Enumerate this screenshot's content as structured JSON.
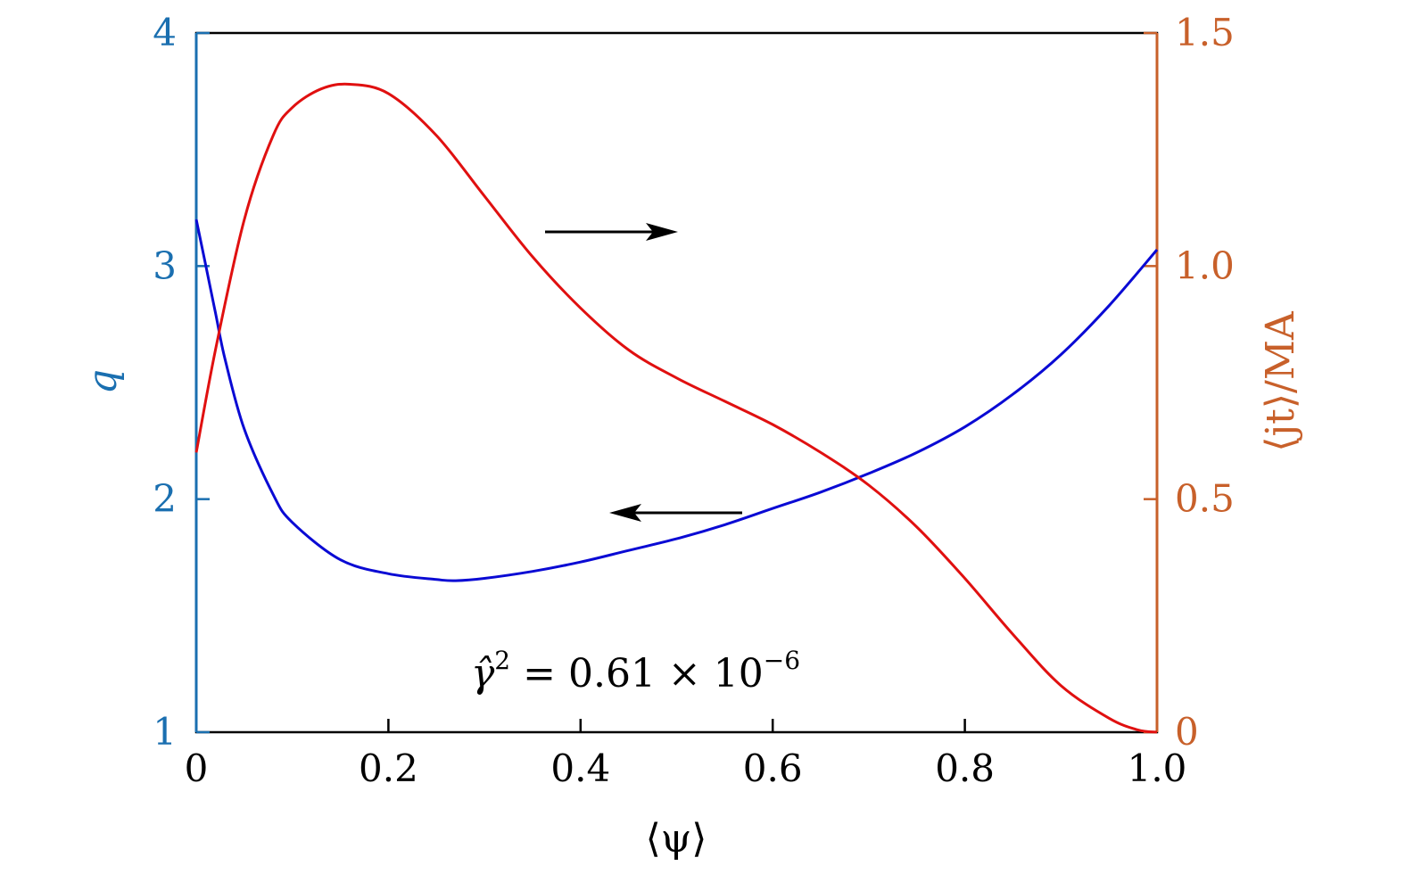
{
  "chart_data": {
    "type": "line",
    "xlabel": "⟨ψ⟩",
    "ylabel_left": "q",
    "ylabel_right": "⟨jt⟩/MA",
    "xlim": [
      0,
      1.0
    ],
    "ylim_left": [
      1,
      4
    ],
    "ylim_right": [
      0,
      1.5
    ],
    "x_ticks": [
      "0",
      "0.2",
      "0.4",
      "0.6",
      "0.8",
      "1.0"
    ],
    "y_left_ticks": [
      "1",
      "2",
      "3",
      "4"
    ],
    "y_right_ticks": [
      "0",
      "0.5",
      "1.0",
      "1.5"
    ],
    "grid": false,
    "annotation": {
      "base": "γ̂",
      "sup": "2",
      "mid": " = 0.61 × 10",
      "exp": "−6"
    },
    "colors": {
      "left_axis": "#1a6fb0",
      "right_axis": "#c8602a",
      "q_series": "#0a0ad4",
      "j_series": "#e01010"
    },
    "series": [
      {
        "axis": "left",
        "x": [
          0,
          0.01,
          0.02,
          0.03,
          0.05,
          0.08,
          0.1,
          0.15,
          0.2,
          0.25,
          0.27,
          0.3,
          0.35,
          0.4,
          0.45,
          0.5,
          0.55,
          0.6,
          0.65,
          0.7,
          0.75,
          0.8,
          0.85,
          0.9,
          0.95,
          1.0
        ],
        "values": [
          3.2,
          3.0,
          2.8,
          2.6,
          2.3,
          2.02,
          1.9,
          1.74,
          1.68,
          1.655,
          1.65,
          1.66,
          1.69,
          1.73,
          1.78,
          1.83,
          1.89,
          1.96,
          2.03,
          2.11,
          2.2,
          2.31,
          2.45,
          2.62,
          2.83,
          3.07
        ]
      },
      {
        "axis": "right",
        "x": [
          0,
          0.02,
          0.05,
          0.08,
          0.1,
          0.13,
          0.16,
          0.2,
          0.25,
          0.3,
          0.35,
          0.4,
          0.45,
          0.5,
          0.55,
          0.6,
          0.65,
          0.7,
          0.75,
          0.8,
          0.85,
          0.9,
          0.95,
          0.98,
          1.0
        ],
        "values": [
          0.6,
          0.82,
          1.1,
          1.28,
          1.34,
          1.38,
          1.39,
          1.37,
          1.28,
          1.15,
          1.02,
          0.91,
          0.82,
          0.76,
          0.71,
          0.66,
          0.6,
          0.53,
          0.44,
          0.33,
          0.21,
          0.1,
          0.03,
          0.005,
          0
        ]
      }
    ]
  }
}
